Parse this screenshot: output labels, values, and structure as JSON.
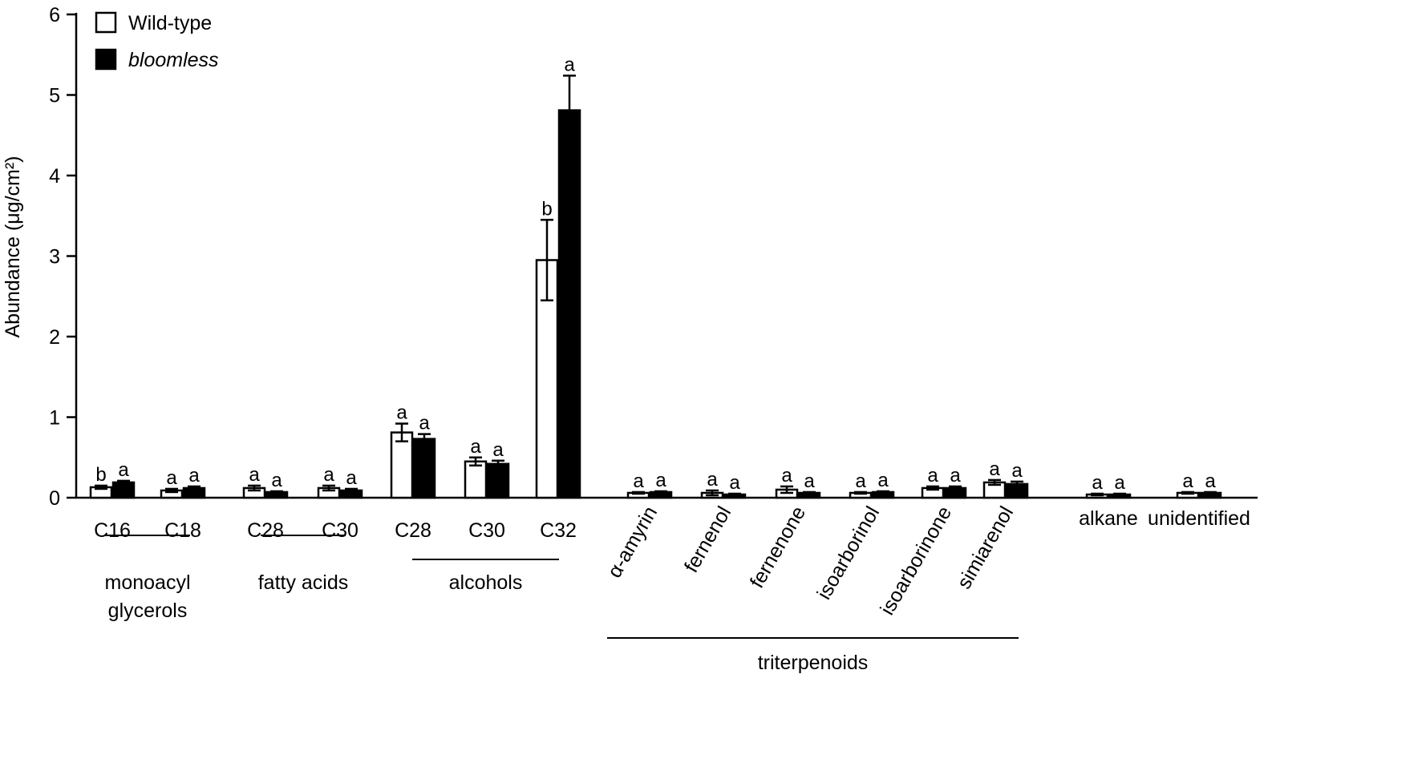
{
  "chart_data": {
    "type": "bar",
    "ylabel": "Abundance (μg/cm²)",
    "ylim": [
      0,
      6
    ],
    "yticks": [
      0,
      1,
      2,
      3,
      4,
      5,
      6
    ],
    "legend_position": "top-left",
    "categories": [
      "C16",
      "C18",
      "C28",
      "C30",
      "C28",
      "C30",
      "C32",
      "α-amyrin",
      "fernenol",
      "fernenone",
      "isoarborinol",
      "isoarborinone",
      "simiarenol",
      "alkane",
      "unidentified"
    ],
    "groups": [
      {
        "label_lines": [
          "monoacyl",
          "glycerols"
        ],
        "members": [
          0,
          1
        ]
      },
      {
        "label_lines": [
          "fatty acids"
        ],
        "members": [
          2,
          3
        ]
      },
      {
        "label_lines": [
          "alcohols"
        ],
        "members": [
          4,
          5,
          6
        ]
      },
      {
        "label_lines": [
          "triterpenoids"
        ],
        "members": [
          7,
          8,
          9,
          10,
          11,
          12
        ]
      }
    ],
    "series": [
      {
        "name": "Wild-type",
        "color": "#ffffff",
        "values": [
          0.13,
          0.09,
          0.12,
          0.12,
          0.81,
          0.45,
          2.95,
          0.06,
          0.06,
          0.1,
          0.06,
          0.12,
          0.19,
          0.04,
          0.06
        ],
        "errors": [
          0.02,
          0.02,
          0.03,
          0.03,
          0.11,
          0.05,
          0.5,
          0.01,
          0.03,
          0.04,
          0.01,
          0.02,
          0.03,
          0.01,
          0.01
        ],
        "sig": [
          "b",
          "a",
          "a",
          "a",
          "a",
          "a",
          "b",
          "a",
          "a",
          "a",
          "a",
          "a",
          "a",
          "a",
          "a"
        ]
      },
      {
        "name": "bloomless",
        "color": "#000000",
        "values": [
          0.19,
          0.12,
          0.07,
          0.09,
          0.73,
          0.42,
          4.81,
          0.07,
          0.04,
          0.06,
          0.07,
          0.12,
          0.17,
          0.04,
          0.06
        ],
        "errors": [
          0.02,
          0.02,
          0.01,
          0.02,
          0.06,
          0.04,
          0.43,
          0.01,
          0.01,
          0.01,
          0.01,
          0.02,
          0.03,
          0.01,
          0.01
        ],
        "sig": [
          "a",
          "a",
          "a",
          "a",
          "a",
          "a",
          "a",
          "a",
          "a",
          "a",
          "a",
          "a",
          "a",
          "a",
          "a"
        ]
      }
    ]
  }
}
